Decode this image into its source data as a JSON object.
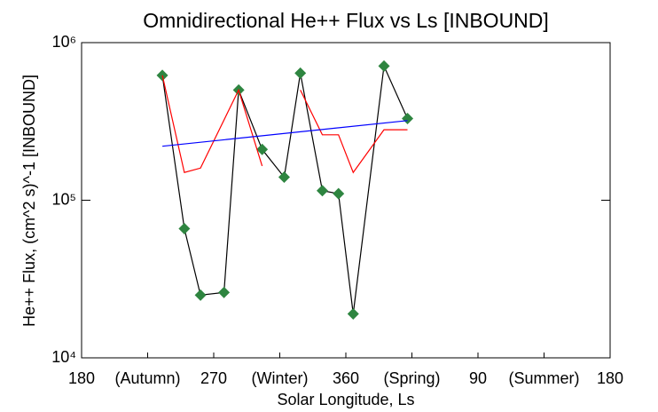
{
  "chart_data": {
    "type": "line",
    "title": "Omnidirectional He++ Flux vs Ls [INBOUND]",
    "x_label": "Solar Longitude, Ls",
    "y_label": "He++ Flux, (cm^2 s)^-1 [INBOUND]",
    "xlim": [
      180,
      540
    ],
    "xticks": [
      180,
      {
        "value": 225,
        "label": "(Autumn)"
      },
      270,
      {
        "value": 315,
        "label": "(Winter)"
      },
      360,
      {
        "value": 405,
        "label": "(Spring)"
      },
      {
        "value": 450,
        "label": "90"
      },
      {
        "value": 495,
        "label": "(Summer)"
      },
      {
        "value": 540,
        "label": "180"
      }
    ],
    "ylim": [
      10000,
      1000000
    ],
    "yticks": [
      {
        "value": 10000,
        "label": "10⁴"
      },
      {
        "value": 100000,
        "label": "10⁵"
      },
      {
        "value": 1000000,
        "label": "10⁶"
      }
    ],
    "log_y": true,
    "series": [
      {
        "color": "#000000",
        "marker": "diamond",
        "marker_color": "#2e8540",
        "x": [
          235,
          250,
          261,
          277,
          287,
          303,
          318,
          329,
          344,
          355,
          365,
          386,
          402
        ],
        "values": [
          620000,
          66000,
          25000,
          26000,
          500000,
          210000,
          140000,
          640000,
          115000,
          110000,
          19000,
          710000,
          330000
        ]
      },
      {
        "color": "#ff0000",
        "x": [
          235,
          250,
          261,
          287,
          303,
          318,
          329,
          344,
          355,
          365,
          386,
          402
        ],
        "values": [
          620000,
          150000,
          160000,
          500000,
          165000,
          null,
          500000,
          260000,
          260000,
          150000,
          280000,
          280000
        ]
      },
      {
        "color": "#0000ff",
        "x": [
          235,
          402
        ],
        "values": [
          220000,
          320000
        ]
      }
    ]
  }
}
